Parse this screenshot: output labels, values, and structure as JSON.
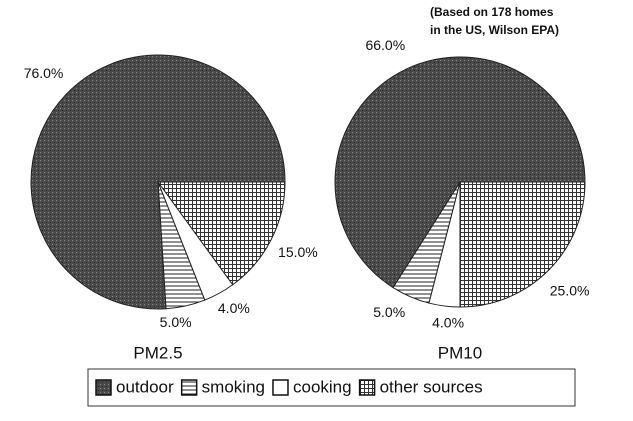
{
  "chart_data": [
    {
      "type": "pie",
      "title": "PM2.5",
      "categories": [
        "outdoor",
        "smoking",
        "cooking",
        "other sources"
      ],
      "values": [
        76,
        5,
        4,
        15
      ],
      "value_labels": [
        "76.0%",
        "5.0%",
        "4.0%",
        "15.0%"
      ],
      "colors": [
        "#4a4a4a",
        "#ffffff",
        "#ffffff",
        "#ffffff"
      ]
    },
    {
      "type": "pie",
      "title": "PM10",
      "categories": [
        "outdoor",
        "smoking",
        "cooking",
        "other sources"
      ],
      "values": [
        66,
        5,
        4,
        25
      ],
      "value_labels": [
        "66.0%",
        "5.0%",
        "4.0%",
        "25.0%"
      ],
      "colors": [
        "#4a4a4a",
        "#ffffff",
        "#ffffff",
        "#ffffff"
      ],
      "annotation": [
        "(Based on 178 homes",
        "in the US,  Wilson EPA)"
      ]
    }
  ]
}
